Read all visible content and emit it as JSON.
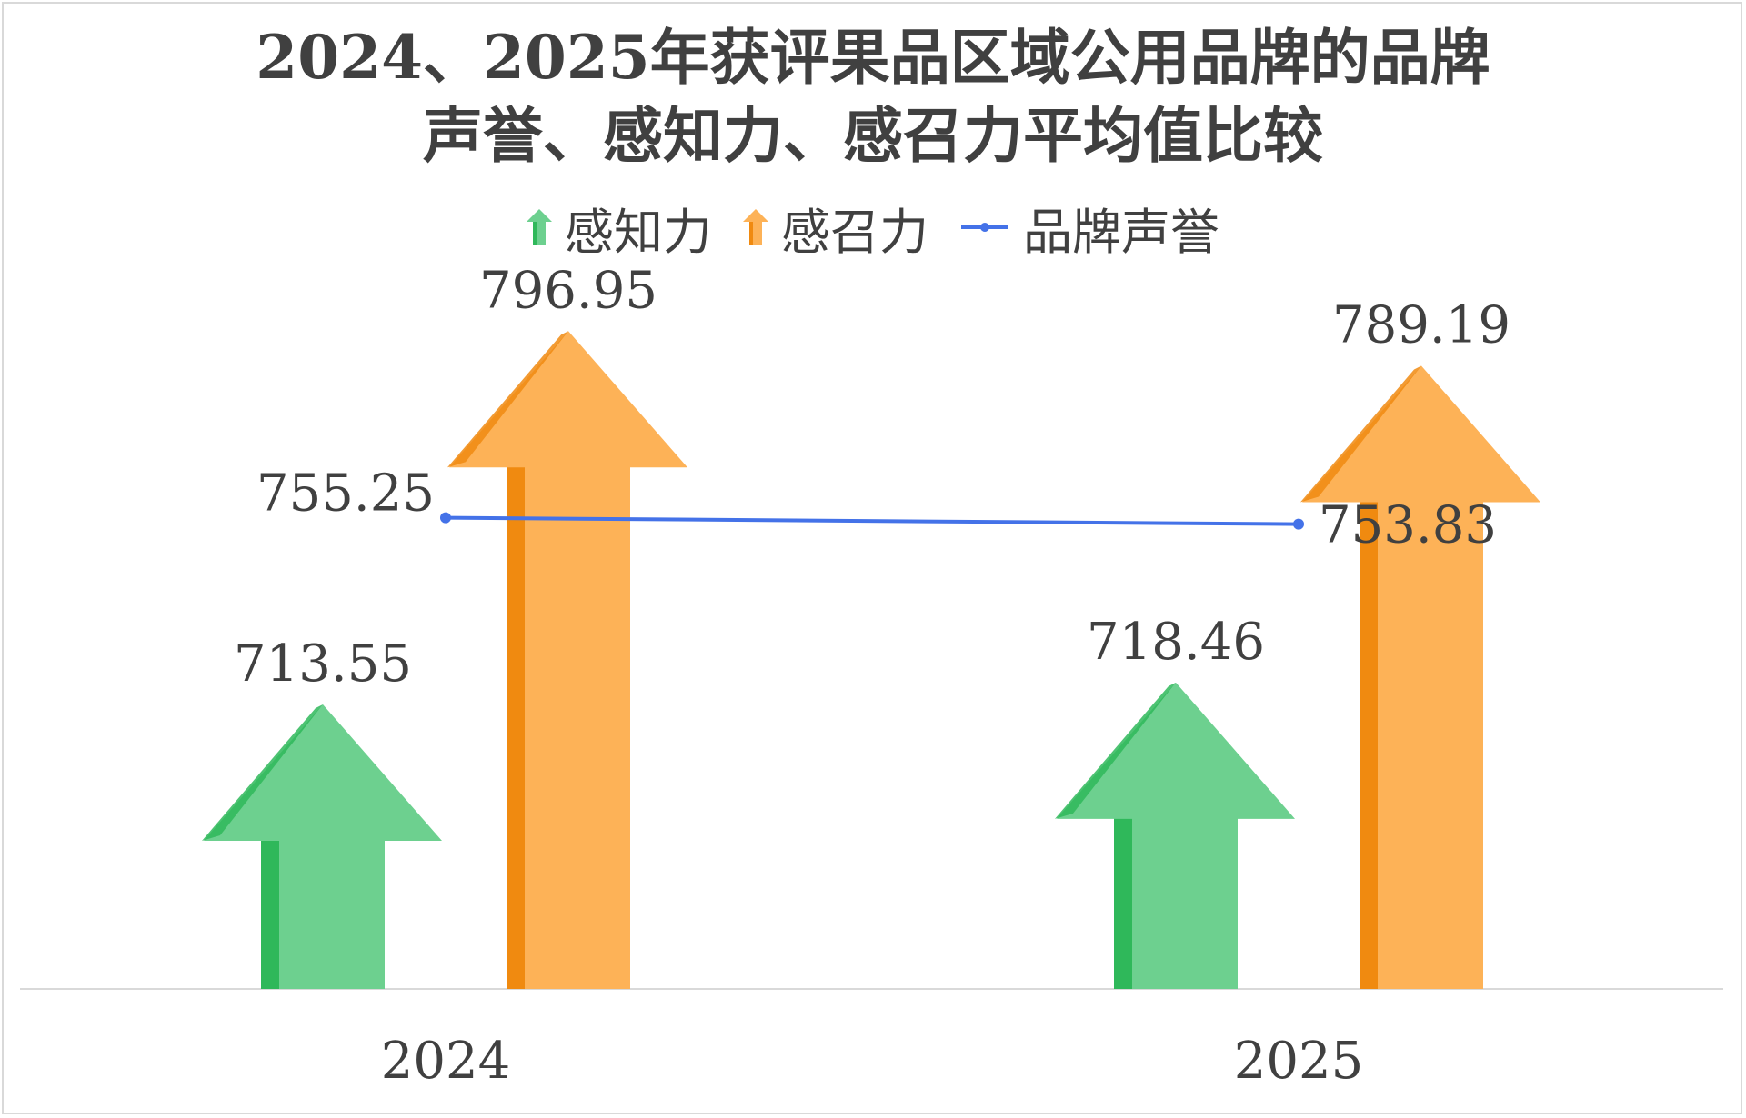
{
  "chart_data": {
    "type": "bar",
    "title_lines": [
      "2024、2025年获评果品区域公用品牌的品牌",
      "声誉、感知力、感召力平均值比较"
    ],
    "categories": [
      "2024",
      "2025"
    ],
    "series": [
      {
        "name": "感知力",
        "kind": "arrow-bar",
        "color": "#6dd08f",
        "shade": "#2fb85a",
        "values": [
          713.55,
          718.46
        ]
      },
      {
        "name": "感召力",
        "kind": "arrow-bar",
        "color": "#fdb257",
        "shade": "#f08a10",
        "values": [
          796.95,
          789.19
        ]
      },
      {
        "name": "品牌声誉",
        "kind": "line",
        "color": "#4472e8",
        "values": [
          755.25,
          753.83
        ]
      }
    ],
    "data_labels": {
      "感知力": [
        "713.55",
        "718.46"
      ],
      "感召力": [
        "796.95",
        "789.19"
      ],
      "品牌声誉": [
        "755.25",
        "753.83"
      ]
    },
    "xlabel": "",
    "ylabel": "",
    "ylim": [
      650,
      810
    ],
    "grid": false,
    "legend_position": "top"
  }
}
